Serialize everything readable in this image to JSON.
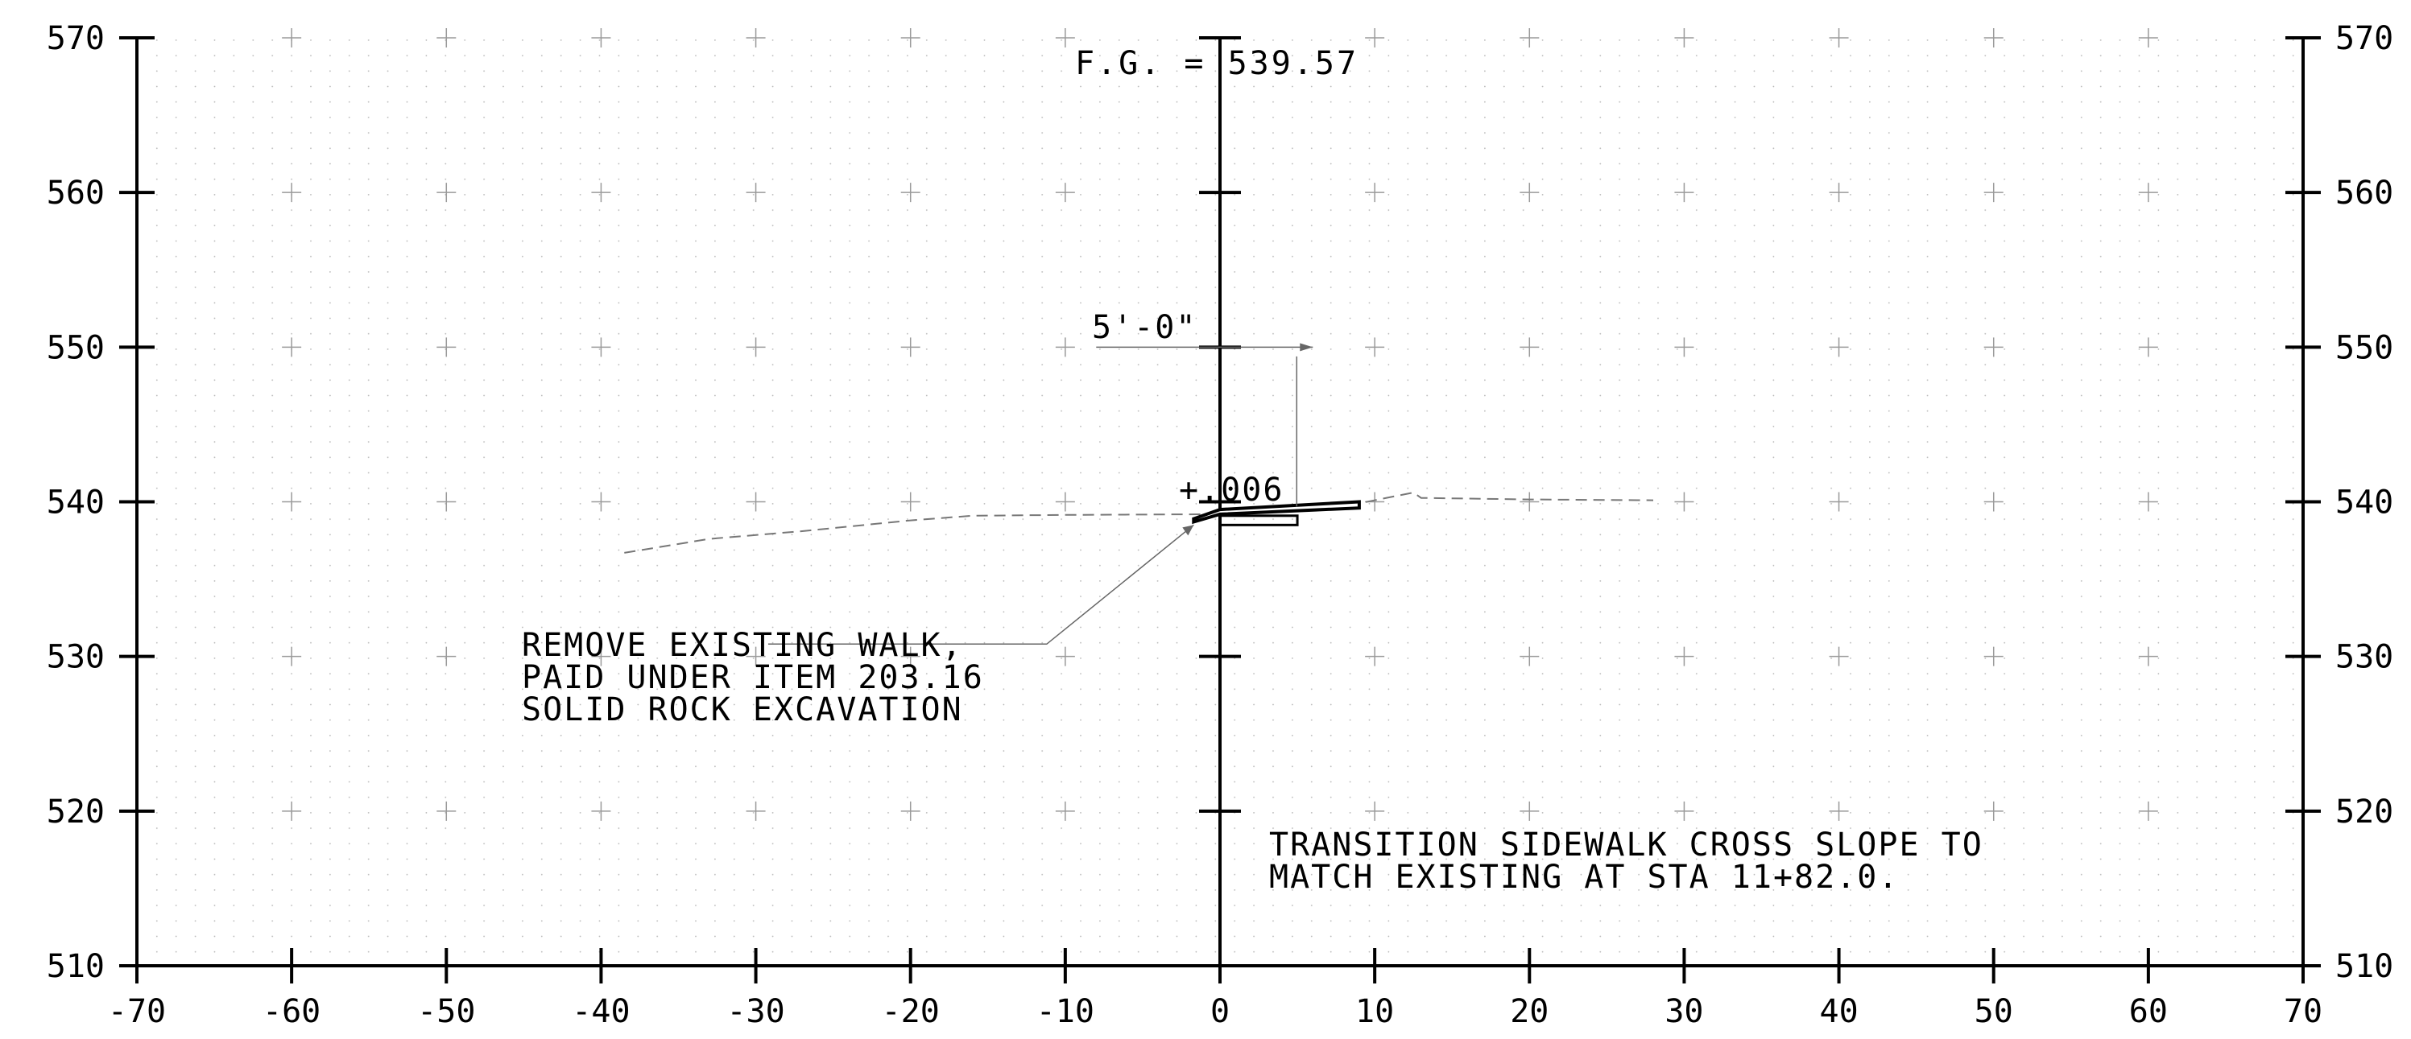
{
  "chart_data": {
    "type": "cross-section",
    "x_ticks": [
      -70,
      -60,
      -50,
      -40,
      -30,
      -20,
      -10,
      0,
      10,
      20,
      30,
      40,
      50,
      60,
      70
    ],
    "y_ticks": [
      510,
      520,
      530,
      540,
      550,
      560,
      570
    ],
    "xlim": [
      -70,
      70
    ],
    "ylim": [
      510,
      570
    ],
    "grid": "dotted with + markers",
    "existing_ground": [
      [
        -38.5,
        536.7
      ],
      [
        -33,
        537.6
      ],
      [
        -27,
        538.1
      ],
      [
        -20,
        538.8
      ],
      [
        -16,
        539.1
      ],
      [
        -10,
        539.15
      ],
      [
        0,
        539.2
      ],
      [
        5,
        539.6
      ],
      [
        9,
        539.9
      ],
      [
        12.5,
        540.6
      ],
      [
        13,
        540.25
      ],
      [
        20,
        540.15
      ],
      [
        28,
        540.1
      ]
    ],
    "proposed_walk_top": [
      [
        -1.7,
        538.9
      ],
      [
        0,
        539.5
      ],
      [
        9,
        540.0
      ]
    ],
    "proposed_walk_bottom": [
      [
        -1.7,
        538.7
      ],
      [
        0,
        539.2
      ],
      [
        9,
        539.6
      ]
    ],
    "existing_walk_block": [
      [
        0,
        538.5
      ],
      [
        5,
        539.1
      ]
    ],
    "dimension_span": [
      -8,
      6
    ],
    "dimension_elevation": 550,
    "labels": {
      "fg": "F.G.  = 539.57",
      "dimension": "5'-0\"",
      "slope": "+.006",
      "remove_note": [
        "REMOVE EXISTING WALK,",
        "PAID UNDER ITEM 203.16",
        "SOLID ROCK EXCAVATION"
      ],
      "transition_note": [
        "TRANSITION SIDEWALK CROSS SLOPE TO",
        "MATCH EXISTING AT STA 11+82.0."
      ]
    }
  }
}
